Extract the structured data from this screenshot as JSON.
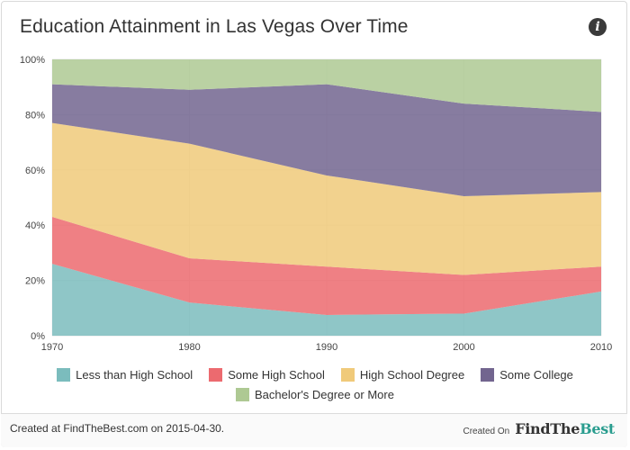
{
  "title": "Education Attainment in Las Vegas Over Time",
  "info_icon": "info-icon",
  "footer": {
    "created_text": "Created at FindTheBest.com on 2015-04-30.",
    "created_on_label": "Created On",
    "brand_part1": "FindThe",
    "brand_part2": "Best"
  },
  "chart_data": {
    "type": "area",
    "stacked": true,
    "x": [
      1970,
      1980,
      1990,
      2000,
      2010
    ],
    "x_tick_labels": [
      "1970",
      "1980",
      "1990",
      "2000",
      "2010"
    ],
    "y_tick_labels": [
      "0%",
      "20%",
      "40%",
      "60%",
      "80%",
      "100%"
    ],
    "ylim": [
      0,
      100
    ],
    "grid": true,
    "legend_position": "bottom",
    "series": [
      {
        "name": "Less than High School",
        "color": "#7bbcbd",
        "values": [
          26,
          12,
          7.5,
          8,
          16
        ]
      },
      {
        "name": "Some High School",
        "color": "#ec6a6f",
        "values": [
          17,
          16,
          17.5,
          14,
          9
        ]
      },
      {
        "name": "High School Degree",
        "color": "#f0ca7a",
        "values": [
          34,
          41.5,
          33,
          28.5,
          27
        ]
      },
      {
        "name": "Some College",
        "color": "#72658f",
        "values": [
          14,
          19.5,
          33,
          33.5,
          29
        ]
      },
      {
        "name": "Bachelor's Degree or More",
        "color": "#aec993",
        "values": [
          9,
          11,
          9,
          16,
          19
        ]
      }
    ]
  }
}
